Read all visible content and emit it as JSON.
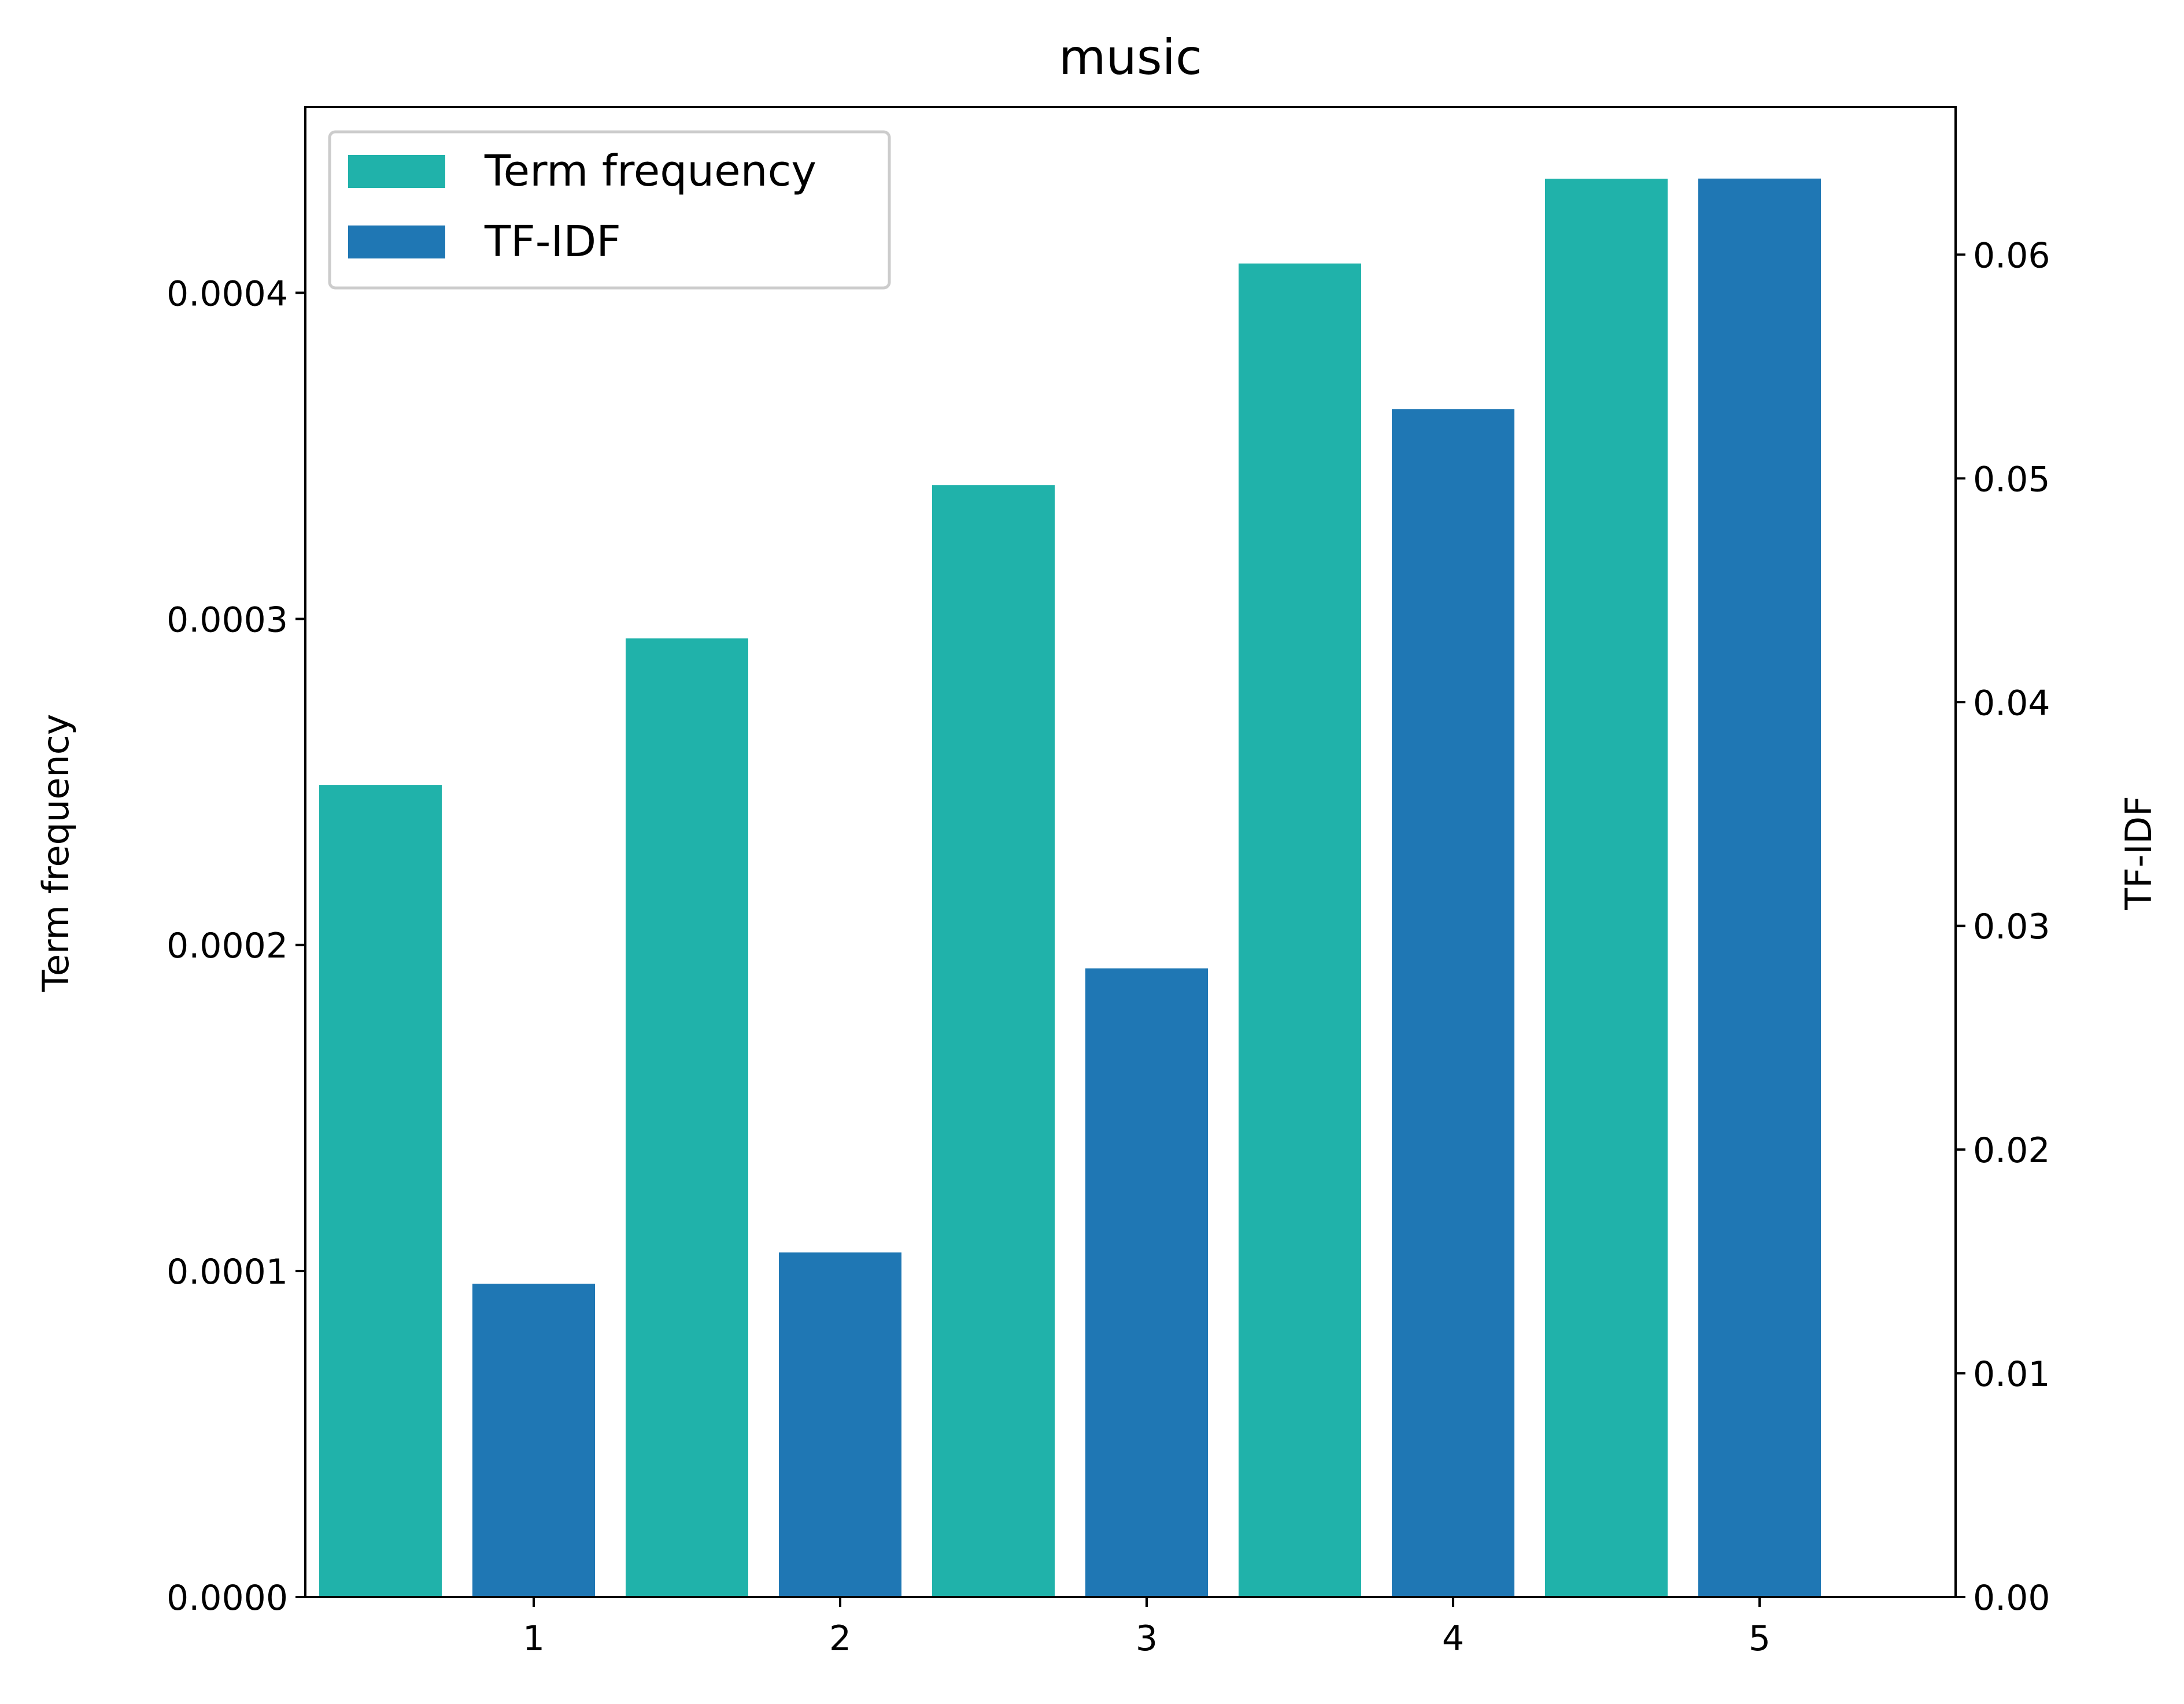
{
  "chart_data": {
    "type": "bar",
    "title": "music",
    "categories": [
      "1",
      "2",
      "3",
      "4",
      "5"
    ],
    "series": [
      {
        "name": "Term frequency",
        "axis": "left",
        "color": "#20B2AA",
        "values": [
          0.000249,
          0.000294,
          0.000341,
          0.000409,
          0.000435
        ]
      },
      {
        "name": "TF-IDF",
        "axis": "right",
        "color": "#1F77B4",
        "values": [
          0.014,
          0.0154,
          0.0281,
          0.0531,
          0.0634
        ]
      }
    ],
    "ylabel": "Term frequency",
    "y2label": "TF-IDF",
    "xlabel": "",
    "ylim": [
      0,
      0.000457
    ],
    "y2lim": [
      0,
      0.0666
    ],
    "yticks": [
      "0.0000",
      "0.0001",
      "0.0002",
      "0.0003",
      "0.0004"
    ],
    "y2ticks": [
      "0.00",
      "0.01",
      "0.02",
      "0.03",
      "0.04",
      "0.05",
      "0.06"
    ],
    "grid": false,
    "legend_position": "top-left"
  }
}
